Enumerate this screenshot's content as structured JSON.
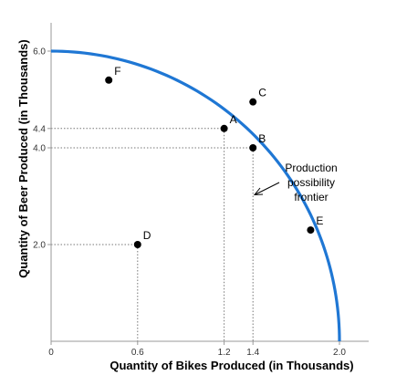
{
  "chart_data": {
    "type": "line",
    "title": "",
    "xlabel": "Quantity of Bikes Produced (in Thousands)",
    "ylabel": "Quantity of Beer Produced (in Thousands)",
    "xlim": [
      0,
      2.0
    ],
    "ylim": [
      0,
      6.0
    ],
    "x_ticks": [
      "0",
      "0.6",
      "1.2",
      "1.4",
      "2.0"
    ],
    "x_tick_values": [
      0,
      0.6,
      1.2,
      1.4,
      2.0
    ],
    "y_ticks": [
      "2.0",
      "4.0",
      "4.4",
      "6.0"
    ],
    "y_tick_values": [
      2.0,
      4.0,
      4.4,
      6.0
    ],
    "grid": false,
    "series": [
      {
        "curve": "ppf",
        "color": "#1f77d4",
        "x": [
          0,
          0.2,
          0.4,
          0.6,
          0.8,
          1.0,
          1.2,
          1.4,
          1.6,
          1.8,
          2.0
        ],
        "y": [
          6.0,
          5.95,
          5.8,
          5.55,
          5.2,
          4.75,
          4.4,
          4.0,
          3.2,
          1.9,
          0
        ]
      }
    ],
    "points": [
      {
        "label": "F",
        "x": 0.4,
        "y": 5.4
      },
      {
        "label": "C",
        "x": 1.4,
        "y": 4.95
      },
      {
        "label": "A",
        "x": 1.2,
        "y": 4.4
      },
      {
        "label": "B",
        "x": 1.4,
        "y": 4.0
      },
      {
        "label": "D",
        "x": 0.6,
        "y": 2.0
      },
      {
        "label": "E",
        "x": 1.8,
        "y": 2.3
      }
    ],
    "guides": [
      {
        "x": 1.2,
        "y": 4.4
      },
      {
        "x": 1.4,
        "y": 4.0
      },
      {
        "x": 0.6,
        "y": 2.0
      }
    ],
    "annotation": [
      "Production",
      "possibility",
      "frontier"
    ]
  }
}
